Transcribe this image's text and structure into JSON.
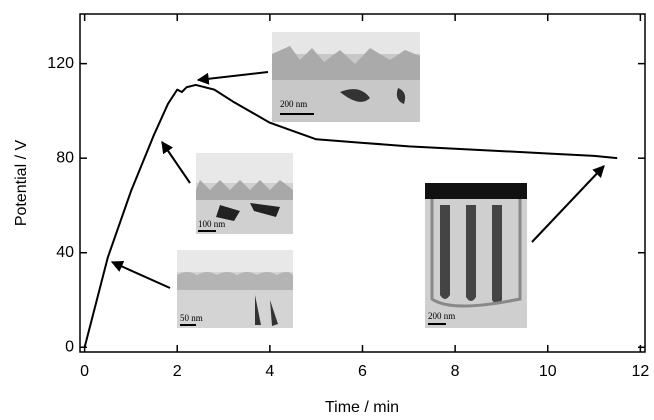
{
  "chart_data": {
    "type": "line",
    "x_label": "Time / min",
    "y_label": "Potential / V",
    "x": [
      0,
      0.5,
      1,
      1.5,
      1.8,
      2.0,
      2.1,
      2.2,
      2.4,
      2.8,
      3.2,
      4,
      5,
      6,
      7,
      8,
      9,
      10,
      11,
      11.5
    ],
    "series": [
      {
        "color": "#000000",
        "values": [
          0,
          38,
          66,
          90,
          103,
          109,
          108,
          110,
          111,
          109,
          104,
          95,
          88,
          86.5,
          85,
          84,
          83,
          82,
          81,
          80
        ]
      }
    ],
    "xlim": [
      -0.1,
      12.1
    ],
    "xticks": [
      0,
      2,
      4,
      6,
      8,
      10,
      12
    ],
    "ylim": [
      -2,
      141
    ],
    "yticks": [
      0,
      40,
      80,
      120
    ],
    "insets": [
      {
        "scale_label": "200 nm"
      },
      {
        "scale_label": "100 nm"
      },
      {
        "scale_label": "50 nm"
      },
      {
        "scale_label": "200 nm"
      }
    ]
  }
}
